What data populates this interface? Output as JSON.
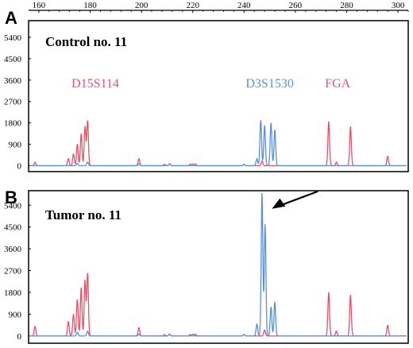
{
  "colors": {
    "red": "#e8506a",
    "blue": "#5b8fd6",
    "frame": "#000000"
  },
  "chart_data": {
    "type": "line",
    "x_ticks": [
      160,
      180,
      200,
      220,
      240,
      260,
      280,
      300
    ],
    "xlim": [
      156,
      304
    ],
    "panels": [
      {
        "letter": "A",
        "title": "Control no. 11",
        "y_ticks": [
          0,
          900,
          1800,
          2700,
          3600,
          4500,
          5400
        ],
        "ylim": [
          -250,
          6100
        ],
        "markers": [
          {
            "label": "D15S114",
            "color": "red",
            "x": 182
          },
          {
            "label": "D3S1530",
            "color": "blue",
            "x": 250
          },
          {
            "label": "FGA",
            "color": "red",
            "x": 276.5
          }
        ],
        "series": [
          {
            "color": "red",
            "peaks": [
              [
                158.5,
                150
              ],
              [
                171.5,
                300
              ],
              [
                173.5,
                500
              ],
              [
                175,
                900
              ],
              [
                176.5,
                1350
              ],
              [
                178,
                1650
              ],
              [
                179,
                1900
              ],
              [
                199,
                300
              ],
              [
                209,
                60
              ],
              [
                211,
                80
              ],
              [
                219,
                60
              ],
              [
                221,
                80
              ],
              [
                240,
                50
              ],
              [
                247,
                200
              ],
              [
                273,
                1850
              ],
              [
                276,
                150
              ],
              [
                281.5,
                1650
              ],
              [
                296,
                400
              ]
            ]
          },
          {
            "color": "blue",
            "peaks": [
              [
                175,
                100
              ],
              [
                179,
                150
              ],
              [
                199,
                80
              ],
              [
                211,
                60
              ],
              [
                220,
                80
              ],
              [
                240,
                60
              ],
              [
                245,
                300
              ],
              [
                246.5,
                1900
              ],
              [
                248,
                1700
              ],
              [
                250.5,
                1800
              ],
              [
                252,
                1500
              ]
            ]
          }
        ]
      },
      {
        "letter": "B",
        "title": "Tumor no. 11",
        "y_ticks": [
          0,
          900,
          1800,
          2700,
          3600,
          4500,
          5400
        ],
        "ylim": [
          -300,
          6000
        ],
        "arrow_target": {
          "x": 249,
          "y": 5450
        },
        "series": [
          {
            "color": "red",
            "peaks": [
              [
                158.5,
                400
              ],
              [
                171.5,
                600
              ],
              [
                173.5,
                900
              ],
              [
                175,
                1500
              ],
              [
                176.5,
                2000
              ],
              [
                178,
                2300
              ],
              [
                179,
                2600
              ],
              [
                199,
                350
              ],
              [
                209,
                60
              ],
              [
                211,
                80
              ],
              [
                219,
                60
              ],
              [
                221,
                80
              ],
              [
                240,
                60
              ],
              [
                248,
                250
              ],
              [
                273,
                1800
              ],
              [
                276,
                200
              ],
              [
                281.5,
                1700
              ],
              [
                296,
                450
              ]
            ]
          },
          {
            "color": "blue",
            "peaks": [
              [
                175,
                150
              ],
              [
                179,
                200
              ],
              [
                199,
                80
              ],
              [
                211,
                60
              ],
              [
                220,
                80
              ],
              [
                240,
                60
              ],
              [
                245,
                500
              ],
              [
                247,
                5900
              ],
              [
                248.2,
                4600
              ],
              [
                250.5,
                1200
              ],
              [
                252,
                1400
              ]
            ]
          }
        ]
      }
    ]
  }
}
